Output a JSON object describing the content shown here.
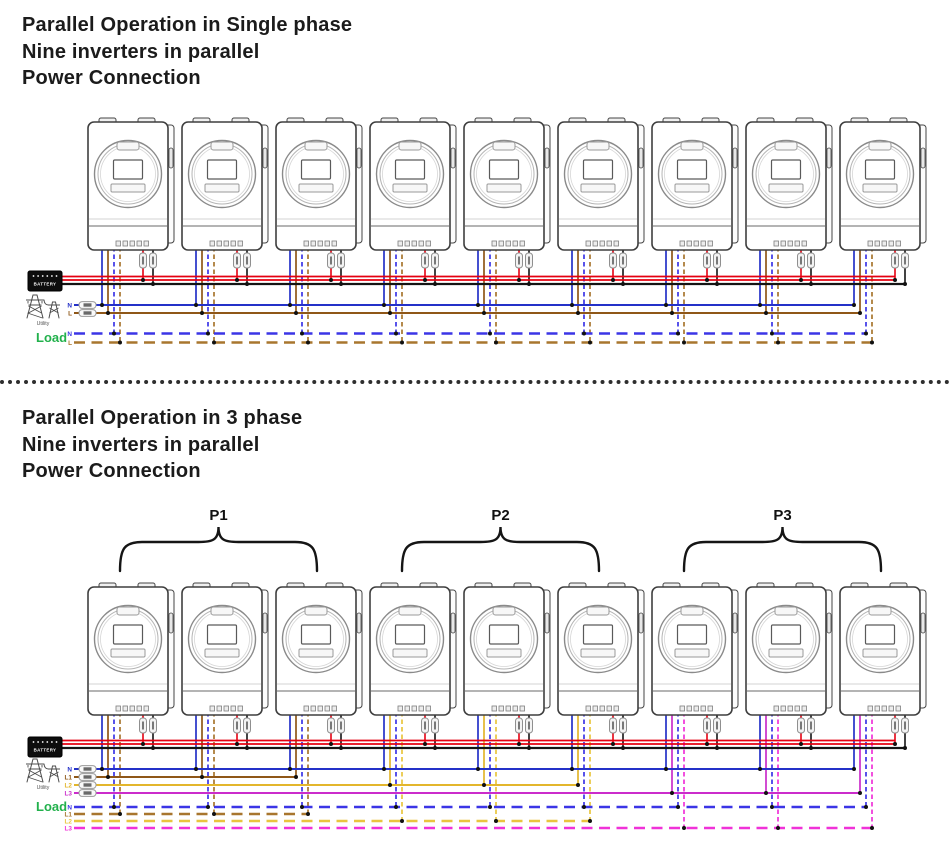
{
  "colors": {
    "battery_positive": "#e50011",
    "battery_negative": "#141414",
    "neutral_blue": "#2431c8",
    "line_brown": "#8f5718",
    "line_yellow": "#e3b62c",
    "line_magenta": "#cb2ccb",
    "dashed_blue": "#3b35e6",
    "dashed_brown": "#a8762e",
    "dashed_yellow": "#e9c53e",
    "dashed_magenta": "#f032d8",
    "load_green": "#22b14c"
  },
  "sections": [
    {
      "title_lines": [
        "Parallel Operation in Single phase",
        "Nine inverters in parallel",
        "Power Connection"
      ],
      "inverter_count": 9,
      "battery": {
        "label": "BATTERY"
      },
      "utility": {
        "label": "Utility",
        "lines": [
          {
            "label": "N",
            "color": "neutral_blue"
          },
          {
            "label": "L",
            "color": "line_brown"
          }
        ]
      },
      "load": {
        "label": "Load",
        "lines": [
          {
            "label": "N",
            "color": "dashed_blue"
          },
          {
            "label": "L",
            "color": "dashed_brown"
          }
        ]
      },
      "groups": []
    },
    {
      "title_lines": [
        "Parallel Operation in 3 phase",
        "Nine inverters in parallel",
        "Power Connection"
      ],
      "inverter_count": 9,
      "battery": {
        "label": "BATTERY"
      },
      "utility": {
        "label": "Utility",
        "lines": [
          {
            "label": "N",
            "color": "neutral_blue"
          },
          {
            "label": "L1",
            "color": "line_brown"
          },
          {
            "label": "L2",
            "color": "line_yellow"
          },
          {
            "label": "L3",
            "color": "line_magenta"
          }
        ]
      },
      "load": {
        "label": "Load",
        "lines": [
          {
            "label": "N",
            "color": "dashed_blue"
          },
          {
            "label": "L1",
            "color": "dashed_brown"
          },
          {
            "label": "L2",
            "color": "dashed_yellow"
          },
          {
            "label": "L3",
            "color": "dashed_magenta"
          }
        ]
      },
      "groups": [
        {
          "label": "P1"
        },
        {
          "label": "P2"
        },
        {
          "label": "P3"
        }
      ]
    }
  ]
}
